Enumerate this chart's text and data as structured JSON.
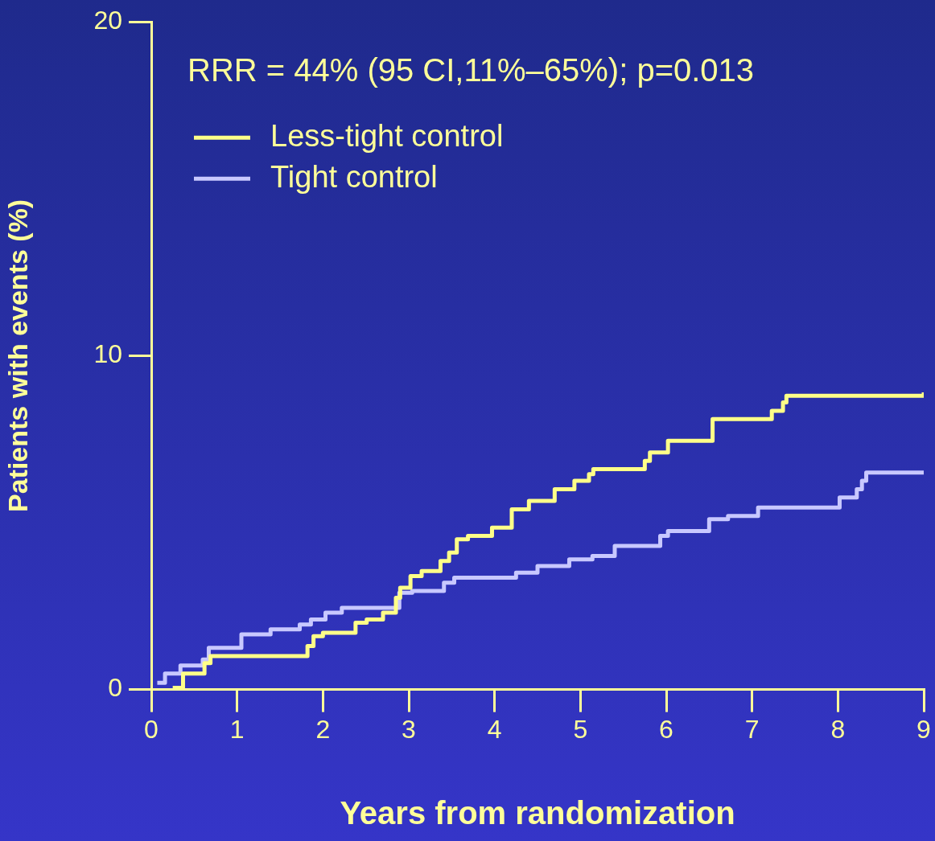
{
  "chart_data": {
    "type": "step",
    "xlabel": "Years from randomization",
    "ylabel": "Patients with events (%)",
    "annotations": [
      "RRR = 44% (95 CI,11%–65%); p=0.013"
    ],
    "xlim": [
      0,
      9
    ],
    "xticks": [
      0,
      1,
      2,
      3,
      4,
      5,
      6,
      7,
      8,
      9
    ],
    "ylim": [
      0,
      20
    ],
    "yticks": [
      0,
      10,
      20
    ],
    "grid": false,
    "legend": "top left",
    "marker": "none",
    "line_style": "solid",
    "series": [
      {
        "name": "Less-tight control",
        "color": "#ffff88",
        "x": [
          0.25,
          0.37,
          0.62,
          0.69,
          1.82,
          1.89,
          2.0,
          2.38,
          2.51,
          2.7,
          2.85,
          2.9,
          3.02,
          3.15,
          3.37,
          3.47,
          3.56,
          3.69,
          3.97,
          4.2,
          4.4,
          4.7,
          4.93,
          5.1,
          5.15,
          5.75,
          5.81,
          6.02,
          6.54,
          7.23,
          7.36,
          7.4,
          9
        ],
        "values": [
          0.05,
          0.48,
          0.79,
          1.0,
          1.3,
          1.6,
          1.7,
          2.0,
          2.1,
          2.3,
          2.75,
          3.05,
          3.4,
          3.55,
          3.85,
          4.1,
          4.5,
          4.6,
          4.85,
          5.4,
          5.65,
          6.0,
          6.25,
          6.45,
          6.6,
          6.85,
          7.1,
          7.45,
          8.1,
          8.35,
          8.6,
          8.8,
          8.9
        ]
      },
      {
        "name": "Tight control",
        "color": "#c8c8ff",
        "x": [
          0.07,
          0.16,
          0.34,
          0.6,
          0.67,
          1.05,
          1.39,
          1.73,
          1.86,
          2.03,
          2.22,
          2.89,
          3.04,
          3.41,
          3.53,
          4.25,
          4.5,
          4.87,
          5.14,
          5.4,
          5.93,
          6.02,
          6.5,
          6.72,
          7.07,
          8.02,
          8.22,
          8.28,
          8.33,
          9
        ],
        "values": [
          0.2,
          0.48,
          0.72,
          0.9,
          1.25,
          1.65,
          1.8,
          1.95,
          2.1,
          2.3,
          2.45,
          2.9,
          2.95,
          3.2,
          3.35,
          3.5,
          3.7,
          3.9,
          4.0,
          4.3,
          4.6,
          4.75,
          5.1,
          5.2,
          5.45,
          5.75,
          6.0,
          6.25,
          6.5,
          6.5
        ]
      }
    ]
  }
}
